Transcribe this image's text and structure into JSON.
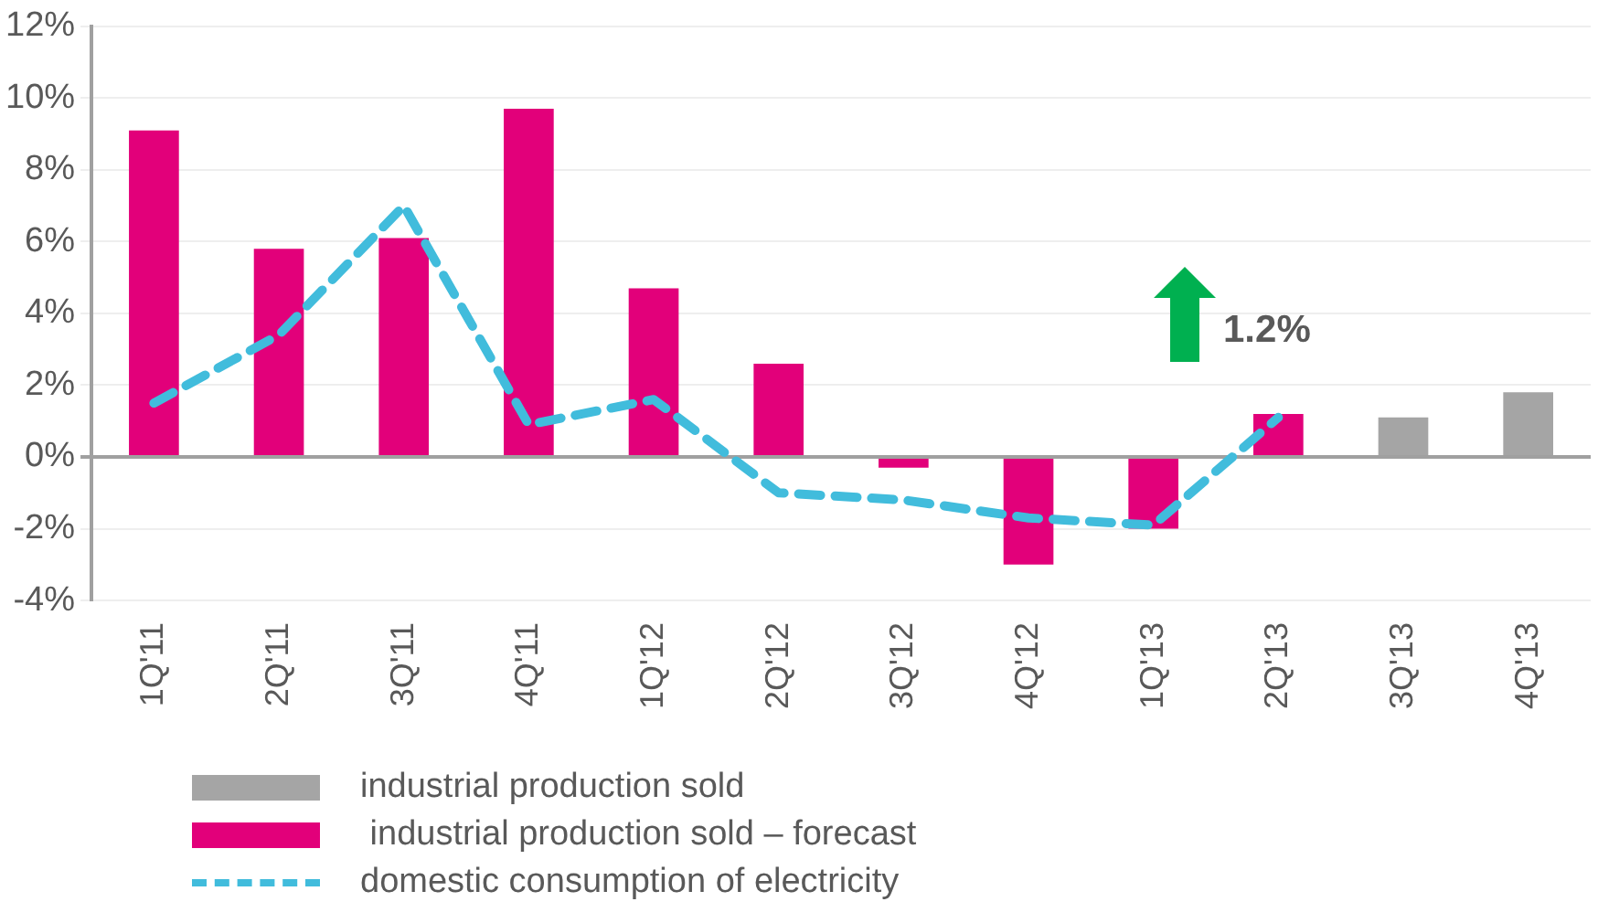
{
  "chart_data": {
    "type": "bar",
    "categories": [
      "1Q'11",
      "2Q'11",
      "3Q'11",
      "4Q'11",
      "1Q'12",
      "2Q'12",
      "3Q'12",
      "4Q'12",
      "1Q'13",
      "2Q'13",
      "3Q'13",
      "4Q'13"
    ],
    "series": [
      {
        "name": "industrial production sold",
        "color": "#a5a5a5",
        "values": [
          null,
          null,
          null,
          null,
          null,
          null,
          null,
          null,
          null,
          null,
          1.1,
          1.8
        ]
      },
      {
        "name": " industrial production sold – forecast",
        "color": "#e2007a",
        "values": [
          9.1,
          5.8,
          6.1,
          9.7,
          4.7,
          2.6,
          -0.3,
          -3.0,
          -2.0,
          1.2,
          null,
          null
        ]
      },
      {
        "name": "domestic consumption of electricity",
        "color": "#41bcdc",
        "type": "line",
        "line_style": "dashed",
        "marker": "none",
        "values": [
          1.5,
          3.4,
          7.0,
          0.9,
          1.6,
          -1.0,
          -1.2,
          -1.7,
          -1.9,
          1.1,
          null,
          null
        ]
      }
    ],
    "ylim": [
      -4,
      12
    ],
    "yticks": [
      {
        "value": -4,
        "label": "-4%"
      },
      {
        "value": -2,
        "label": "-2%"
      },
      {
        "value": 0,
        "label": "0%"
      },
      {
        "value": 2,
        "label": "2%"
      },
      {
        "value": 4,
        "label": "4%"
      },
      {
        "value": 6,
        "label": "6%"
      },
      {
        "value": 8,
        "label": "8%"
      },
      {
        "value": 10,
        "label": "10%"
      },
      {
        "value": 12,
        "label": "12%"
      }
    ],
    "grid": "y",
    "legend": "bottom",
    "annotations": [
      "1.2%"
    ]
  }
}
